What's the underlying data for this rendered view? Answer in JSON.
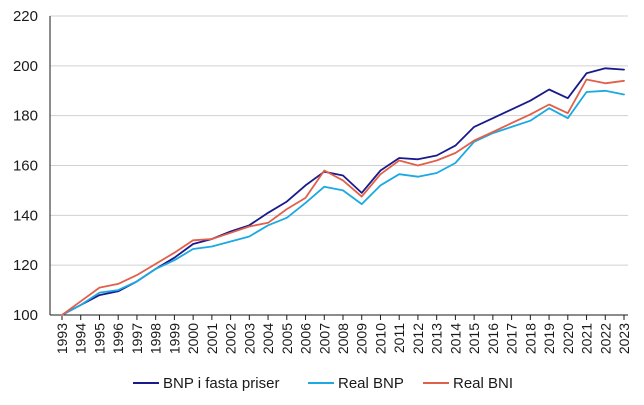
{
  "chart_data": {
    "type": "line",
    "title": "",
    "xlabel": "",
    "ylabel": "",
    "ylim": [
      100,
      220
    ],
    "yticks": [
      100,
      120,
      140,
      160,
      180,
      200,
      220
    ],
    "grid": "horizontal",
    "legend_position": "bottom",
    "x": [
      "1993",
      "1994",
      "1995",
      "1996",
      "1997",
      "1998",
      "1999",
      "2000",
      "2001",
      "2002",
      "2003",
      "2004",
      "2005",
      "2006",
      "2007",
      "2008",
      "2009",
      "2010",
      "2011",
      "2012",
      "2013",
      "2014",
      "2015",
      "2016",
      "2017",
      "2018",
      "2019",
      "2020",
      "2021",
      "2022",
      "2023"
    ],
    "series": [
      {
        "name": "BNP i fasta priser",
        "color": "#1a1a8c",
        "values": [
          100.0,
          104.0,
          108.0,
          109.5,
          113.5,
          118.5,
          123.0,
          128.5,
          130.5,
          133.5,
          136.0,
          141.0,
          145.5,
          152.0,
          157.5,
          156.0,
          149.0,
          158.0,
          163.0,
          162.5,
          164.0,
          168.0,
          175.5,
          179.0,
          182.5,
          186.0,
          190.5,
          187.0,
          197.0,
          199.0,
          198.5
        ]
      },
      {
        "name": "Real BNP",
        "color": "#1ba9e2",
        "values": [
          100.0,
          104.0,
          109.0,
          110.0,
          113.5,
          118.5,
          122.0,
          126.5,
          127.5,
          129.5,
          131.5,
          136.0,
          139.0,
          145.0,
          151.5,
          150.0,
          144.5,
          152.0,
          156.5,
          155.5,
          157.0,
          161.0,
          169.5,
          173.0,
          175.5,
          178.0,
          183.0,
          179.0,
          189.5,
          190.0,
          188.5
        ]
      },
      {
        "name": "Real BNI",
        "color": "#e0604b",
        "values": [
          100.0,
          105.5,
          111.0,
          112.5,
          116.0,
          120.5,
          125.0,
          130.0,
          130.5,
          133.0,
          135.5,
          137.0,
          142.5,
          147.0,
          158.0,
          154.0,
          147.5,
          156.5,
          162.0,
          160.0,
          162.0,
          165.0,
          170.0,
          173.5,
          177.0,
          180.5,
          184.5,
          181.0,
          194.5,
          193.0,
          194.0
        ]
      }
    ]
  }
}
